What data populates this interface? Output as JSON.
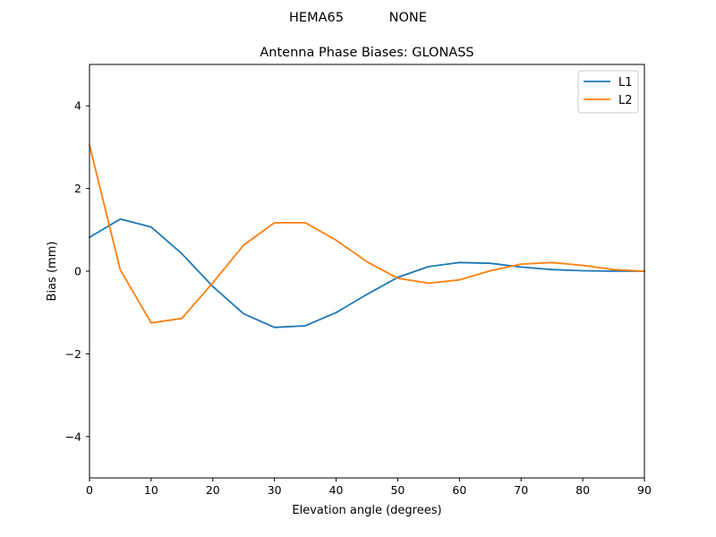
{
  "suptitle": "HEMA65           NONE",
  "chart_data": {
    "type": "line",
    "title": "Antenna Phase Biases: GLONASS",
    "xlabel": "Elevation angle (degrees)",
    "ylabel": "Bias (mm)",
    "xlim": [
      0,
      90
    ],
    "ylim": [
      -5,
      5
    ],
    "xticks": [
      0,
      10,
      20,
      30,
      40,
      50,
      60,
      70,
      80,
      90
    ],
    "yticks": [
      -4,
      -2,
      0,
      2,
      4
    ],
    "grid": false,
    "legend_position": "top-right",
    "x": [
      0,
      5,
      10,
      15,
      20,
      25,
      30,
      35,
      40,
      45,
      50,
      55,
      60,
      65,
      70,
      75,
      80,
      85,
      90
    ],
    "series": [
      {
        "name": "L1",
        "color": "#1f77b4",
        "values": [
          0.82,
          1.26,
          1.07,
          0.42,
          -0.37,
          -1.03,
          -1.36,
          -1.32,
          -1.0,
          -0.56,
          -0.15,
          0.11,
          0.21,
          0.19,
          0.1,
          0.04,
          0.01,
          0.0,
          0.0
        ]
      },
      {
        "name": "L2",
        "color": "#ff7f0e",
        "values": [
          3.05,
          0.03,
          -1.25,
          -1.14,
          -0.28,
          0.63,
          1.17,
          1.17,
          0.75,
          0.23,
          -0.17,
          -0.29,
          -0.21,
          0.01,
          0.17,
          0.21,
          0.14,
          0.04,
          0.0
        ]
      }
    ]
  }
}
